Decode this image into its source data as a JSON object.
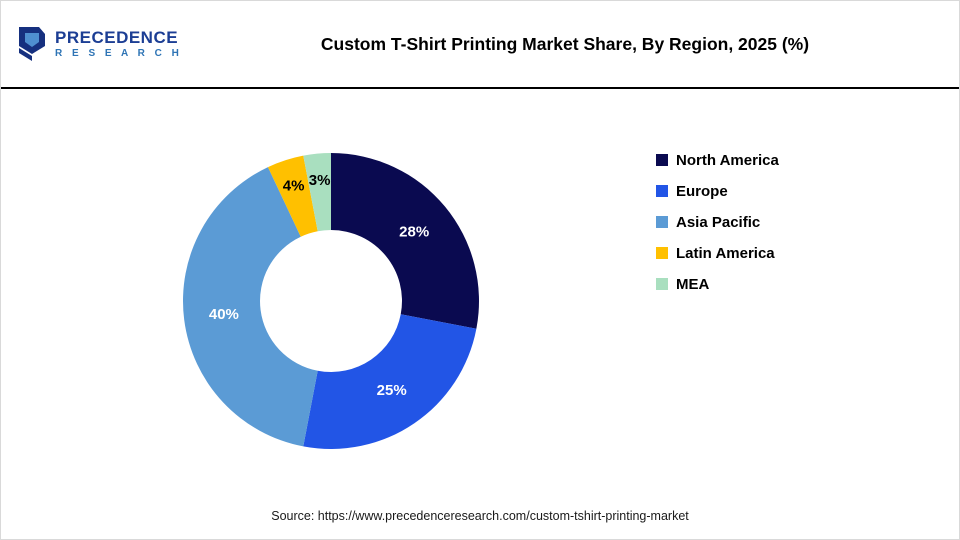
{
  "header": {
    "logo_line1": "PRECEDENCE",
    "logo_line2": "R E S E A R C H",
    "title": "Custom T-Shirt Printing Market Share, By Region, 2025 (%)"
  },
  "chart_data": {
    "type": "pie",
    "subtype": "donut",
    "title": "Custom T-Shirt Printing Market Share, By Region, 2025 (%)",
    "categories": [
      "North America",
      "Europe",
      "Asia Pacific",
      "Latin America",
      "MEA"
    ],
    "values": [
      28,
      25,
      40,
      4,
      3
    ],
    "labels": [
      "28%",
      "25%",
      "40%",
      "4%",
      "3%"
    ],
    "colors": [
      "#0a0a50",
      "#2255e6",
      "#5b9bd5",
      "#ffc000",
      "#a9dfbf"
    ],
    "legend_position": "right",
    "start_angle_deg": 0,
    "direction": "clockwise",
    "inner_radius_ratio": 0.48
  },
  "footer": {
    "source": "Source: https://www.precedenceresearch.com/custom-tshirt-printing-market"
  }
}
